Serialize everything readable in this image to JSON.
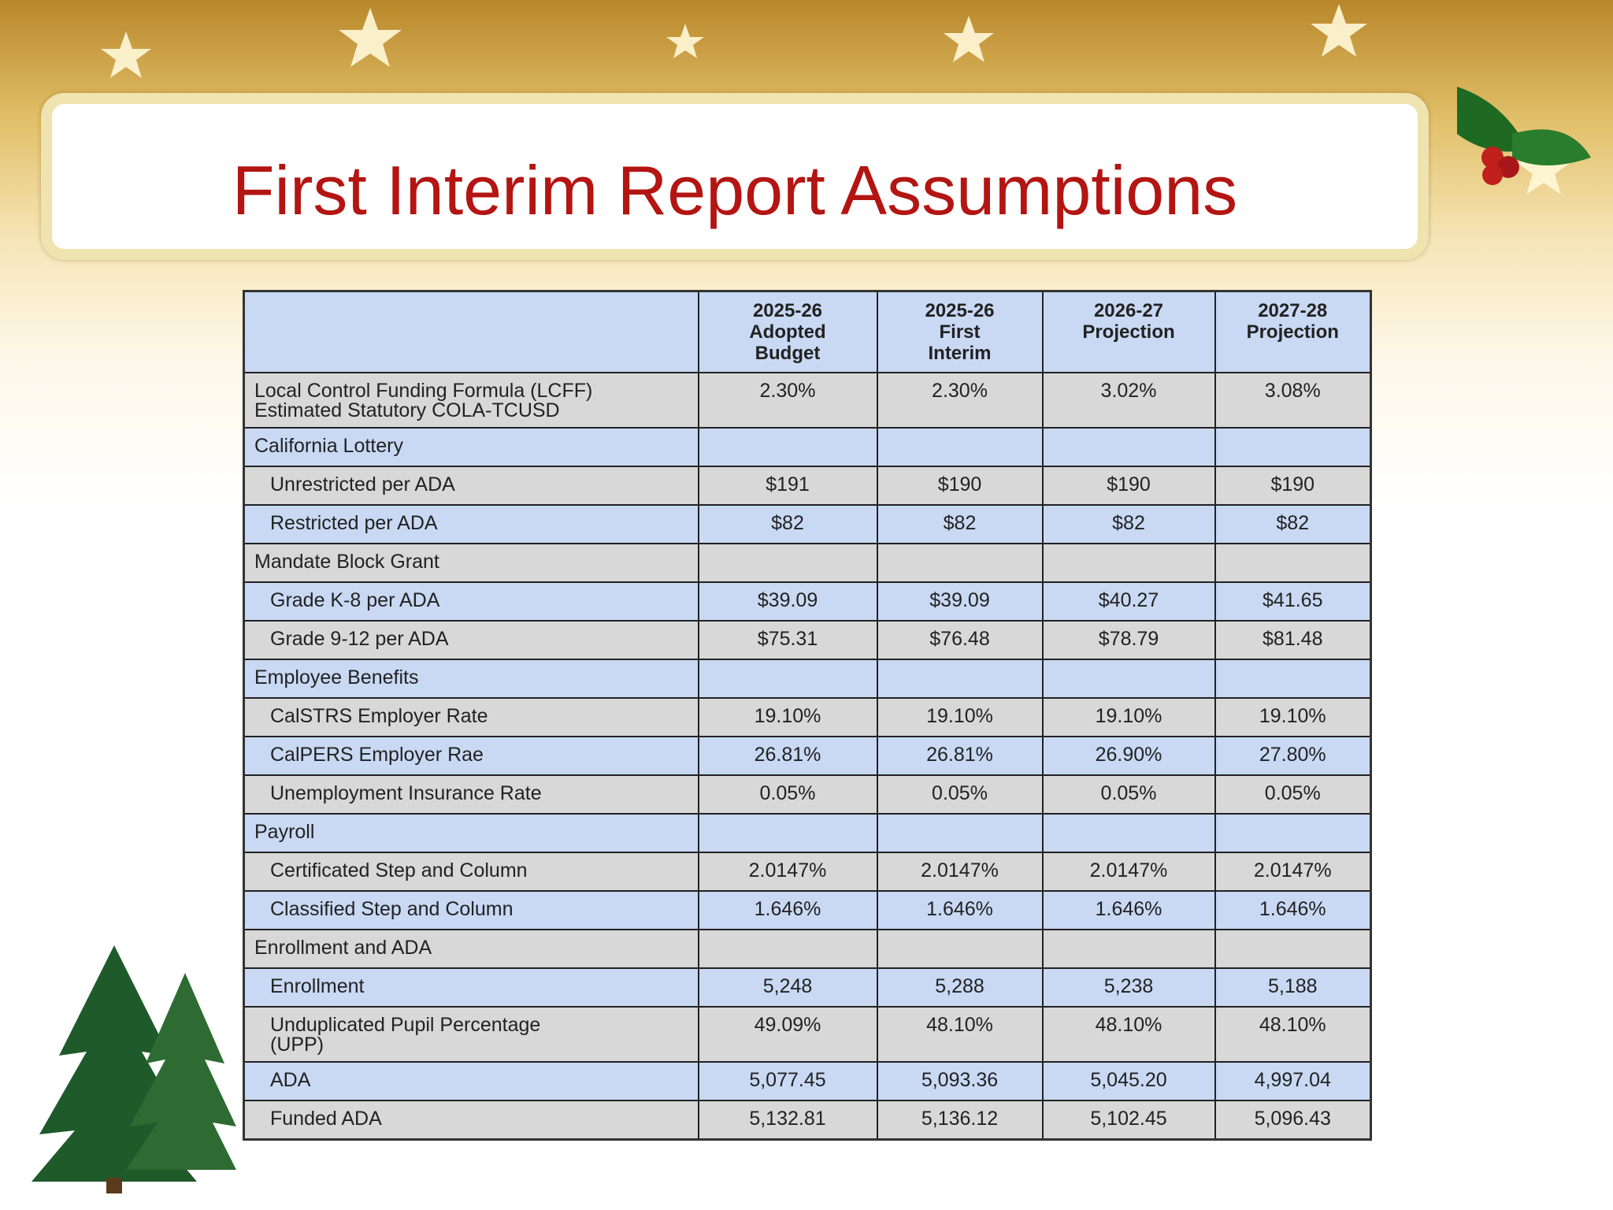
{
  "header": {
    "title": "First Interim Report Assumptions"
  },
  "table": {
    "columns": [
      "2025-26\nAdopted\nBudget",
      "2025-26\nFirst\nInterim",
      "2026-27\nProjection",
      "2027-28\nProjection"
    ],
    "rows": [
      {
        "label": "Local Control Funding Formula (LCFF)\nEstimated Statutory COLA-TCUSD",
        "values": [
          "2.30%",
          "2.30%",
          "3.02%",
          "3.08%"
        ]
      },
      {
        "label": "California Lottery"
      },
      {
        "label": "Unrestricted per ADA",
        "values": [
          "$191",
          "$190",
          "$190",
          "$190"
        ]
      },
      {
        "label": "Restricted per ADA",
        "values": [
          "$82",
          "$82",
          "$82",
          "$82"
        ]
      },
      {
        "label": "Mandate Block Grant"
      },
      {
        "label": "Grade K-8 per ADA",
        "values": [
          "$39.09",
          "$39.09",
          "$40.27",
          "$41.65"
        ]
      },
      {
        "label": "Grade 9-12 per ADA",
        "values": [
          "$75.31",
          "$76.48",
          "$78.79",
          "$81.48"
        ]
      },
      {
        "label": "Employee Benefits"
      },
      {
        "label": "CalSTRS Employer Rate",
        "values": [
          "19.10%",
          "19.10%",
          "19.10%",
          "19.10%"
        ]
      },
      {
        "label": "CalPERS Employer Rae",
        "values": [
          "26.81%",
          "26.81%",
          "26.90%",
          "27.80%"
        ]
      },
      {
        "label": "Unemployment Insurance Rate",
        "values": [
          "0.05%",
          "0.05%",
          "0.05%",
          "0.05%"
        ]
      },
      {
        "label": "Payroll"
      },
      {
        "label": "Certificated Step and Column",
        "values": [
          "2.0147%",
          "2.0147%",
          "2.0147%",
          "2.0147%"
        ]
      },
      {
        "label": "Classified Step and Column",
        "values": [
          "1.646%",
          "1.646%",
          "1.646%",
          "1.646%"
        ]
      },
      {
        "label": "Enrollment and ADA"
      },
      {
        "label": "Enrollment",
        "values": [
          "5,248",
          "5,288",
          "5,238",
          "5,188"
        ]
      },
      {
        "label": "Unduplicated Pupil Percentage\n(UPP)",
        "values": [
          "49.09%",
          "48.10%",
          "48.10%",
          "48.10%"
        ]
      },
      {
        "label": "ADA",
        "values": [
          "5,077.45",
          "5,093.36",
          "5,045.20",
          "4,997.04"
        ]
      },
      {
        "label": "Funded ADA",
        "values": [
          "5,132.81",
          "5,136.12",
          "5,102.45",
          "5,096.43"
        ]
      }
    ]
  }
}
